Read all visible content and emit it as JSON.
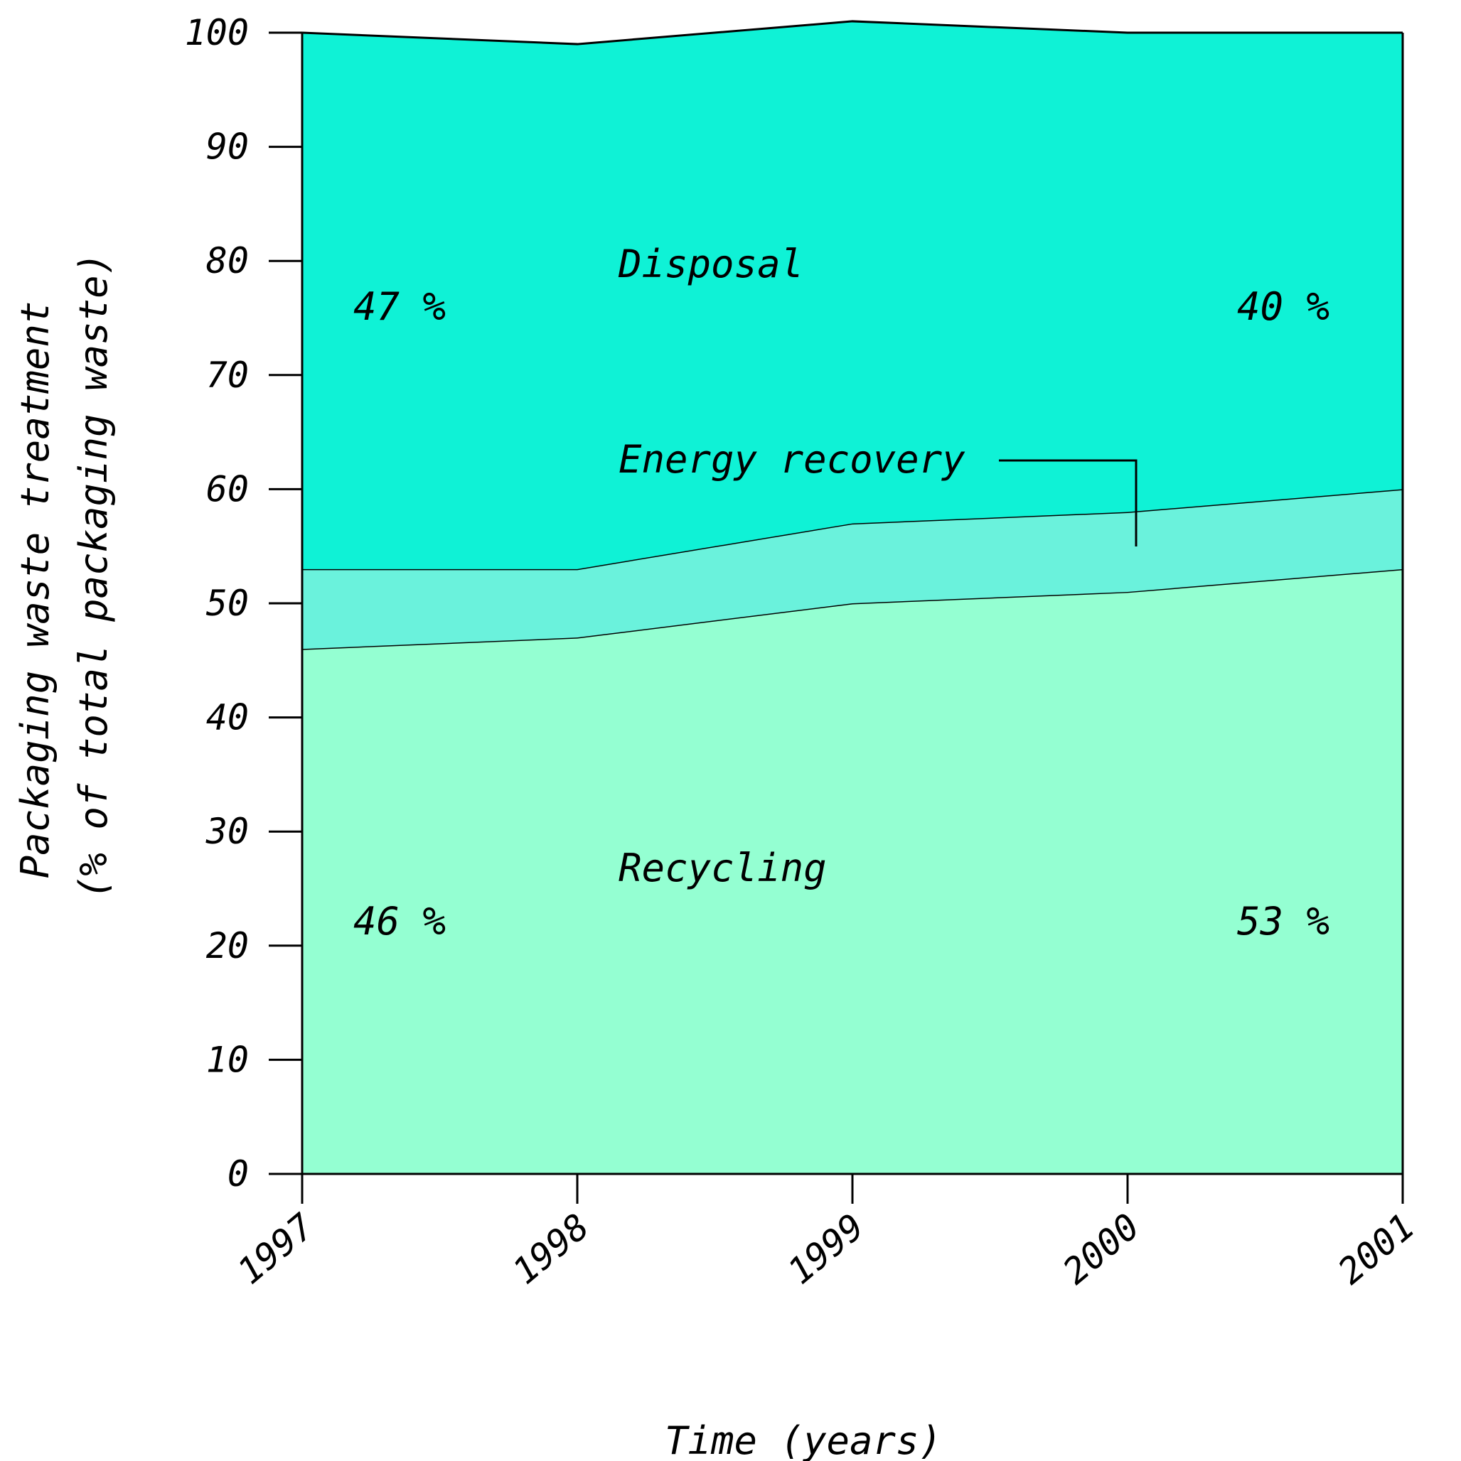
{
  "chart_data": {
    "type": "area",
    "stacked": true,
    "x": [
      1997,
      1998,
      1999,
      2000,
      2001
    ],
    "series": [
      {
        "name": "Recycling",
        "values": [
          46,
          47,
          50,
          51,
          53
        ],
        "color": "#94ffd2"
      },
      {
        "name": "Energy recovery",
        "values": [
          7,
          6,
          7,
          7,
          7
        ],
        "color": "#6af2dc"
      },
      {
        "name": "Disposal",
        "values": [
          47,
          46,
          44,
          42,
          40
        ],
        "color": "#0ff2d6"
      }
    ],
    "xlabel": "Time (years)",
    "ylabel_line1": "Packaging waste treatment",
    "ylabel_line2": "(% of total packaging waste)",
    "ylim": [
      0,
      100
    ],
    "yticks": [
      "0",
      "10",
      "20",
      "30",
      "40",
      "50",
      "60",
      "70",
      "80",
      "90",
      "100"
    ],
    "xticks": [
      "1997",
      "1998",
      "1999",
      "2000",
      "2001"
    ],
    "grid": false,
    "legend": "none",
    "annotations": {
      "disposal_label": "Disposal",
      "energy_label": "Energy recovery",
      "recycling_label": "Recycling",
      "disposal_1997": "47 %",
      "disposal_2001": "40 %",
      "recycling_1997": "46 %",
      "recycling_2001": "53 %"
    }
  }
}
